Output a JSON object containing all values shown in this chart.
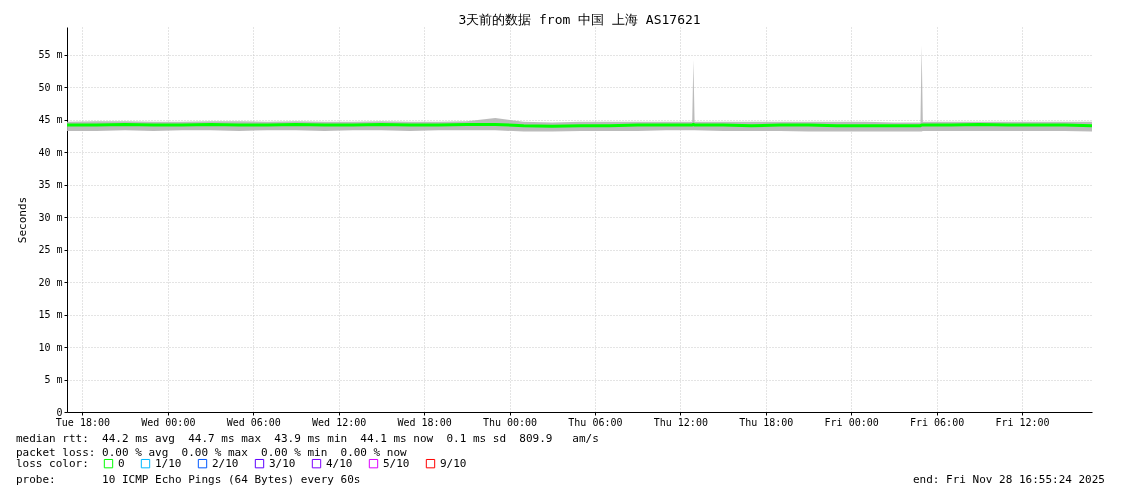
{
  "chart_data": {
    "type": "line",
    "title": "3天前的数据 from 中国 上海 AS17621",
    "ylabel": "Seconds",
    "legend_title": "loss color:",
    "legend": "bottom left",
    "grid": true,
    "marker": "none",
    "xlim": [
      "2025-11-25T16:55",
      "2025-11-28T16:55"
    ],
    "xticks": [
      {
        "value": "2025-11-25T18:00",
        "label": "Tue 18:00"
      },
      {
        "value": "2025-11-26T00:00",
        "label": "Wed 00:00"
      },
      {
        "value": "2025-11-26T06:00",
        "label": "Wed 06:00"
      },
      {
        "value": "2025-11-26T12:00",
        "label": "Wed 12:00"
      },
      {
        "value": "2025-11-26T18:00",
        "label": "Wed 18:00"
      },
      {
        "value": "2025-11-27T00:00",
        "label": "Thu 00:00"
      },
      {
        "value": "2025-11-27T06:00",
        "label": "Thu 06:00"
      },
      {
        "value": "2025-11-27T12:00",
        "label": "Thu 12:00"
      },
      {
        "value": "2025-11-27T18:00",
        "label": "Thu 18:00"
      },
      {
        "value": "2025-11-28T00:00",
        "label": "Fri 00:00"
      },
      {
        "value": "2025-11-28T06:00",
        "label": "Fri 06:00"
      },
      {
        "value": "2025-11-28T12:00",
        "label": "Fri 12:00"
      }
    ],
    "ylim": [
      0,
      59.3
    ],
    "yticks": [
      0,
      {
        "value": 5,
        "label": "5 m"
      },
      {
        "value": 10,
        "label": "10 m"
      },
      {
        "value": 15,
        "label": "15 m"
      },
      {
        "value": 20,
        "label": "20 m"
      },
      {
        "value": 25,
        "label": "25 m"
      },
      {
        "value": 30,
        "label": "30 m"
      },
      {
        "value": 35,
        "label": "35 m"
      },
      {
        "value": 40,
        "label": "40 m"
      },
      {
        "value": 45,
        "label": "45 m"
      },
      {
        "value": 50,
        "label": "50 m"
      },
      {
        "value": 55,
        "label": "55 m"
      }
    ],
    "series": [
      {
        "name": "0",
        "color": "#00ff00",
        "x": [
          "2025-11-25T16:55",
          "2025-11-25T19:00",
          "2025-11-25T21:00",
          "2025-11-25T23:00",
          "2025-11-26T01:00",
          "2025-11-26T03:00",
          "2025-11-26T05:00",
          "2025-11-26T07:00",
          "2025-11-26T09:00",
          "2025-11-26T11:00",
          "2025-11-26T13:00",
          "2025-11-26T15:00",
          "2025-11-26T17:00",
          "2025-11-26T19:00",
          "2025-11-26T21:00",
          "2025-11-26T23:00",
          "2025-11-27T01:00",
          "2025-11-27T03:00",
          "2025-11-27T05:00",
          "2025-11-27T07:00",
          "2025-11-27T09:00",
          "2025-11-27T11:00",
          "2025-11-27T12:50",
          "2025-11-27T12:55",
          "2025-11-27T13:00",
          "2025-11-27T15:00",
          "2025-11-27T17:00",
          "2025-11-27T19:00",
          "2025-11-27T21:00",
          "2025-11-27T23:00",
          "2025-11-28T01:00",
          "2025-11-28T03:00",
          "2025-11-28T04:52",
          "2025-11-28T04:57",
          "2025-11-28T05:02",
          "2025-11-28T07:00",
          "2025-11-28T09:00",
          "2025-11-28T11:00",
          "2025-11-28T13:00",
          "2025-11-28T15:00",
          "2025-11-28T16:55"
        ],
        "values": [
          44.2,
          44.2,
          44.3,
          44.2,
          44.2,
          44.3,
          44.2,
          44.2,
          44.3,
          44.2,
          44.2,
          44.3,
          44.2,
          44.2,
          44.3,
          44.3,
          44.1,
          44.0,
          44.1,
          44.1,
          44.2,
          44.2,
          44.2,
          44.3,
          44.2,
          44.2,
          44.1,
          44.2,
          44.2,
          44.1,
          44.1,
          44.1,
          44.1,
          44.2,
          44.2,
          44.2,
          44.3,
          44.2,
          44.2,
          44.2,
          44.1
        ],
        "lower": [
          43.3,
          43.3,
          43.4,
          43.3,
          43.4,
          43.4,
          43.3,
          43.4,
          43.4,
          43.3,
          43.4,
          43.4,
          43.3,
          43.4,
          43.4,
          43.4,
          43.2,
          43.2,
          43.3,
          43.3,
          43.3,
          43.4,
          43.4,
          43.4,
          43.4,
          43.3,
          43.3,
          43.3,
          43.2,
          43.2,
          43.2,
          43.2,
          43.2,
          43.2,
          43.3,
          43.3,
          43.3,
          43.3,
          43.3,
          43.3,
          43.2
        ],
        "upper": [
          44.7,
          44.8,
          44.8,
          44.7,
          44.7,
          44.8,
          44.8,
          44.7,
          44.8,
          44.7,
          44.7,
          44.8,
          44.7,
          44.7,
          44.8,
          45.3,
          44.7,
          44.6,
          44.7,
          44.7,
          44.7,
          44.7,
          44.7,
          54.2,
          44.7,
          44.7,
          44.7,
          44.7,
          44.7,
          44.7,
          44.7,
          44.6,
          44.6,
          56.4,
          44.7,
          44.7,
          44.7,
          44.7,
          44.7,
          44.7,
          44.7
        ]
      },
      {
        "name": "1/10",
        "color": "#00b8ff"
      },
      {
        "name": "2/10",
        "color": "#0059ff"
      },
      {
        "name": "3/10",
        "color": "#5e00ff"
      },
      {
        "name": "4/10",
        "color": "#7e00ff"
      },
      {
        "name": "5/10",
        "color": "#dd00ff"
      },
      {
        "name": "9/10",
        "color": "#ff0000"
      }
    ],
    "annotations": [
      "median rtt:  44.2 ms avg  44.7 ms max  43.9 ms min  44.1 ms now  0.1 ms sd  809.9   am/s",
      "packet loss: 0.00 % avg  0.00 % max  0.00 % min  0.00 % now",
      "probe:       10 ICMP Echo Pings (64 Bytes) every 60s",
      "end: Fri Nov 28 16:55:24 2025"
    ]
  }
}
